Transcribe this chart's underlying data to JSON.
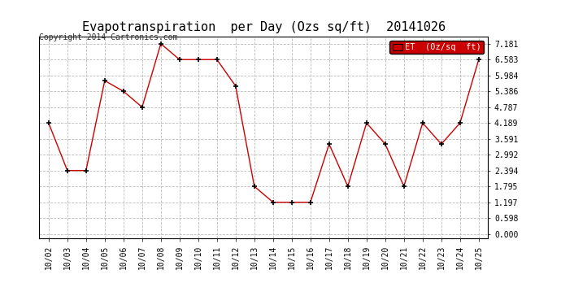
{
  "title": "Evapotranspiration  per Day (Ozs sq/ft)  20141026",
  "copyright": "Copyright 2014 Cartronics.com",
  "legend_label": "ET  (0z/sq  ft)",
  "x_labels": [
    "10/02",
    "10/03",
    "10/04",
    "10/05",
    "10/06",
    "10/07",
    "10/08",
    "10/09",
    "10/10",
    "10/11",
    "10/12",
    "10/13",
    "10/14",
    "10/15",
    "10/16",
    "10/17",
    "10/18",
    "10/19",
    "10/20",
    "10/21",
    "10/22",
    "10/23",
    "10/24",
    "10/25"
  ],
  "y_values": [
    4.189,
    2.394,
    2.394,
    5.786,
    5.386,
    4.787,
    7.181,
    6.583,
    6.583,
    6.583,
    5.584,
    1.795,
    1.197,
    1.197,
    1.197,
    3.392,
    1.795,
    4.189,
    3.392,
    1.795,
    4.189,
    3.392,
    4.189,
    6.583
  ],
  "y_ticks": [
    0.0,
    0.598,
    1.197,
    1.795,
    2.394,
    2.992,
    3.591,
    4.189,
    4.787,
    5.386,
    5.984,
    6.583,
    7.181
  ],
  "line_color": "#cc0000",
  "marker_color": "#000000",
  "legend_bg": "#cc0000",
  "legend_text_color": "#ffffff",
  "background_color": "#ffffff",
  "grid_color": "#bbbbbb",
  "title_fontsize": 11,
  "copyright_fontsize": 7,
  "tick_fontsize": 7,
  "legend_fontsize": 7.5
}
